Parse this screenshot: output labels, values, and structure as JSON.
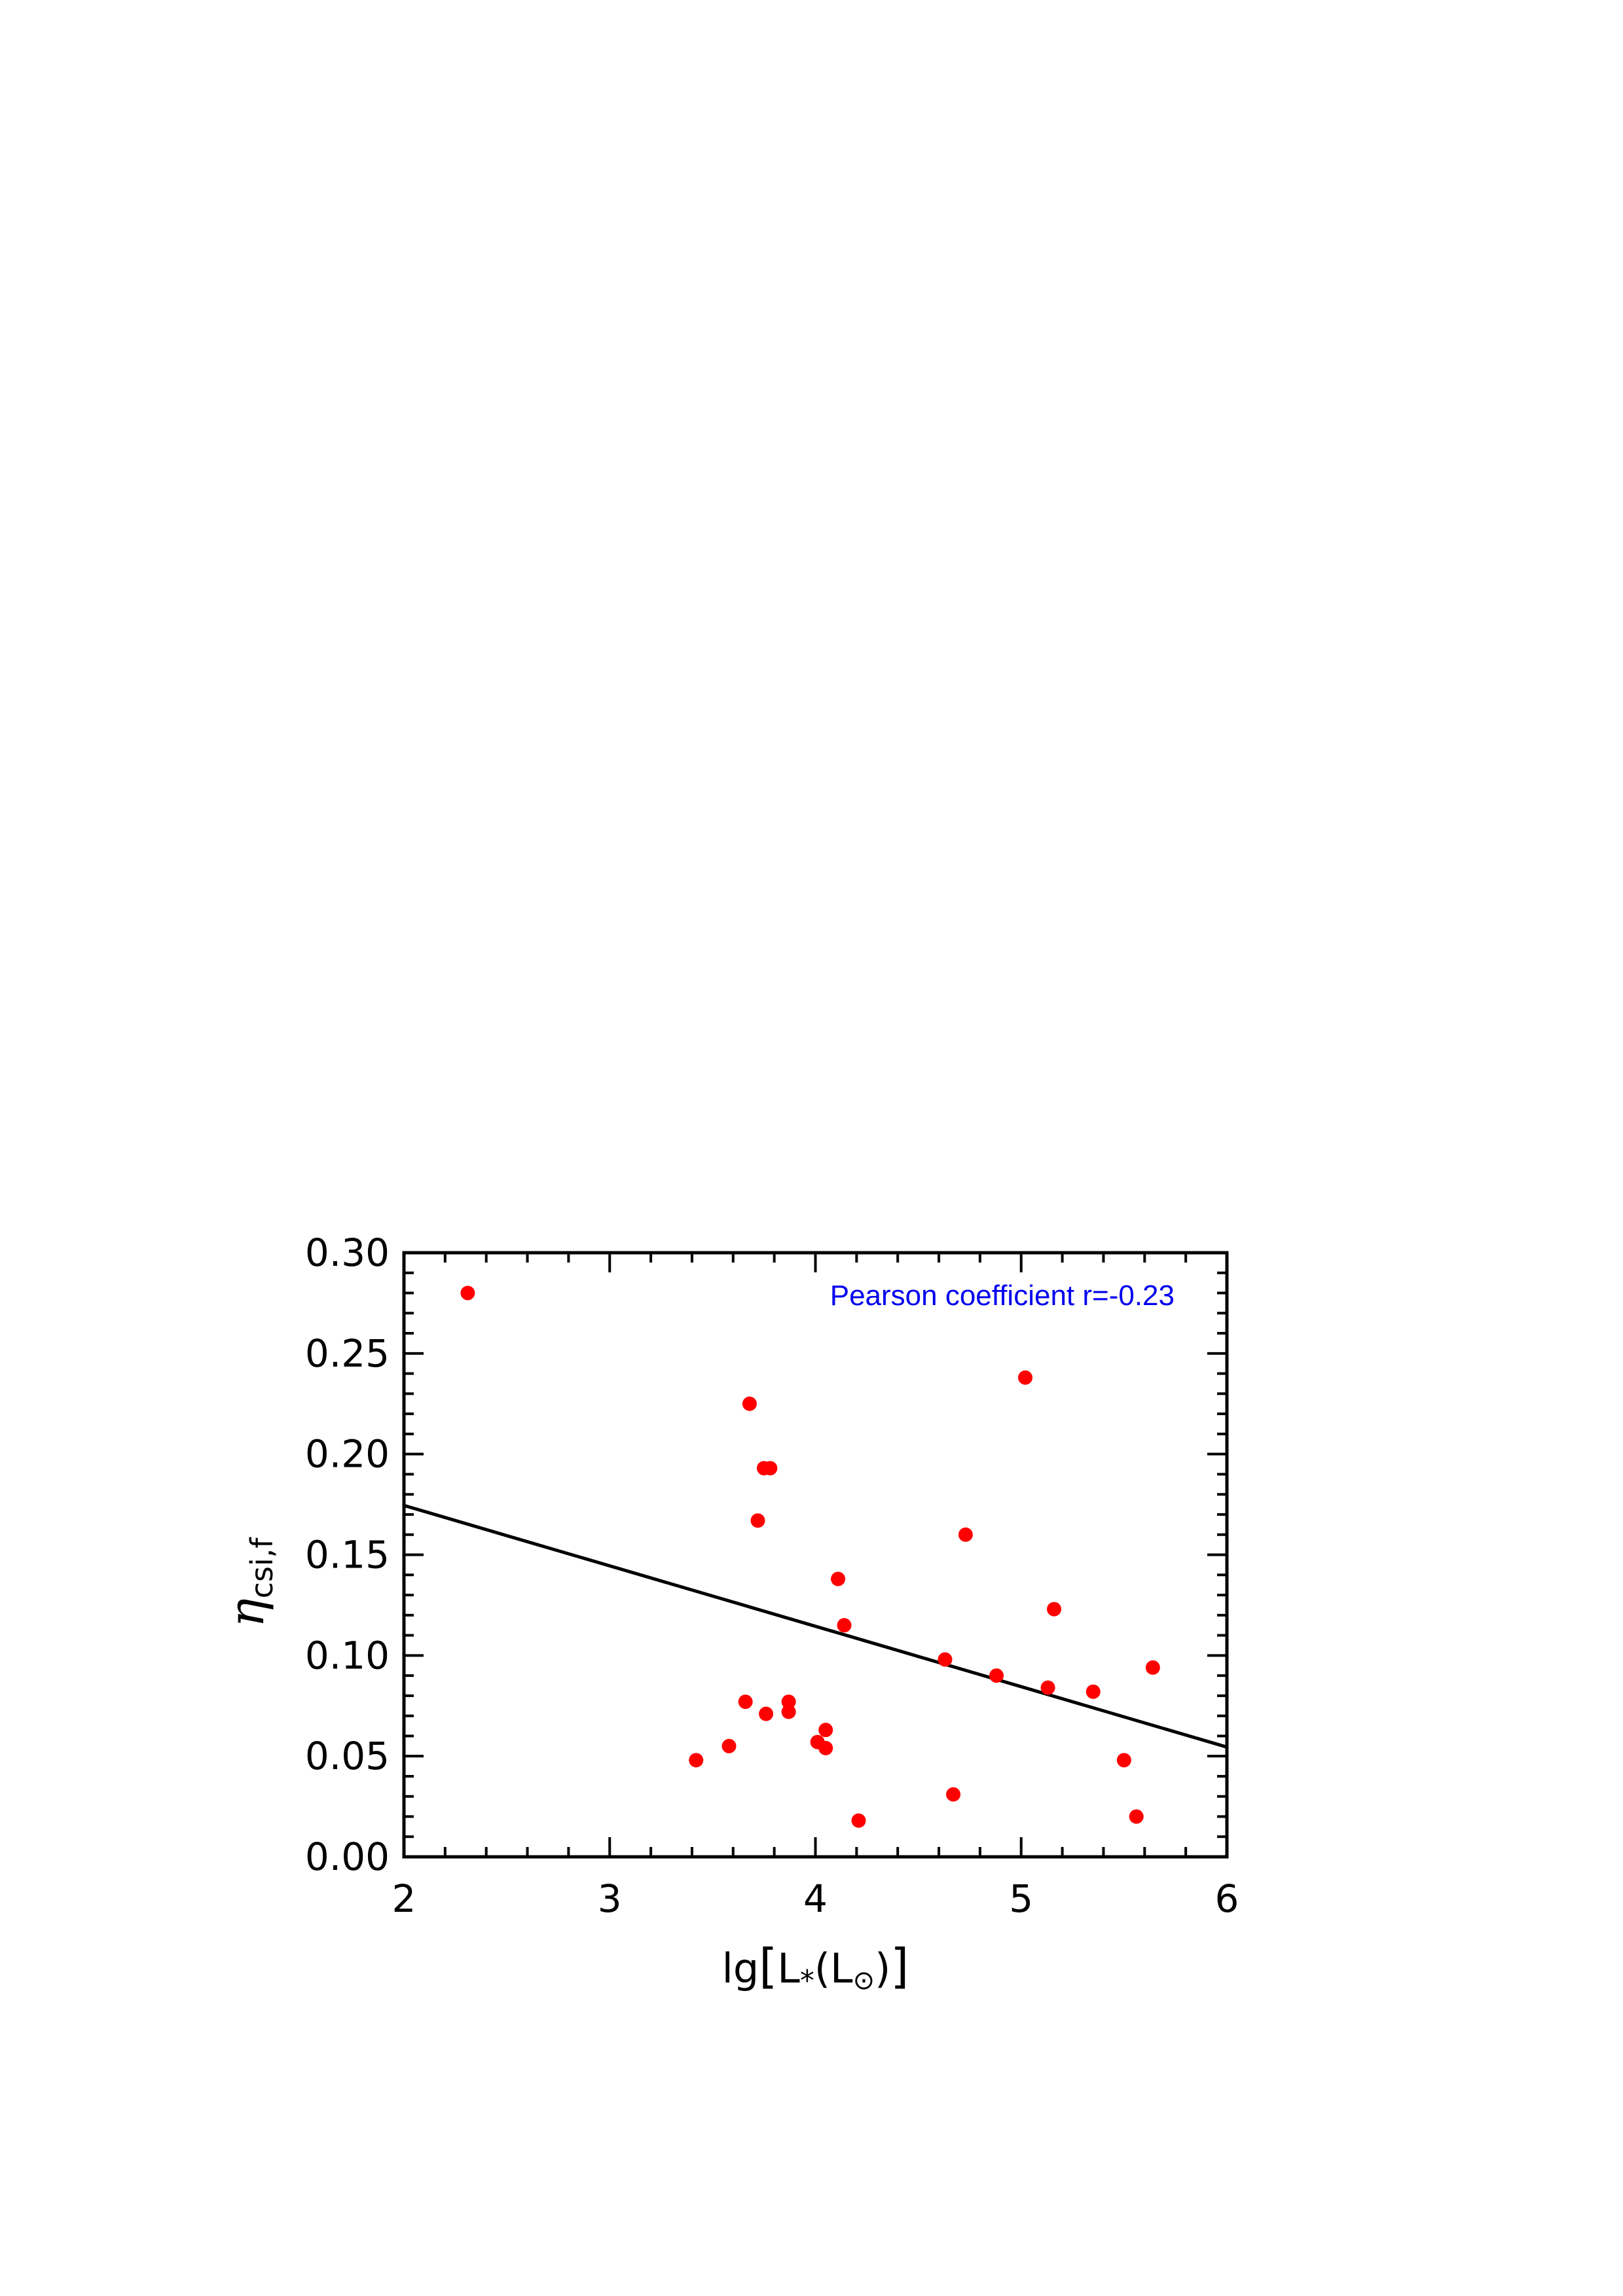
{
  "chart_data": {
    "type": "scatter",
    "xlabel": "lg[L*(L⊙)]",
    "xlabel_parts": {
      "prefix": "lg",
      "bracket_open": "[",
      "symbol": "L",
      "subscript": "*",
      "paren_open": "(",
      "unit": "L",
      "unit_subscript": "⊙",
      "paren_close": ")",
      "bracket_close": "]"
    },
    "ylabel": "ηcsi,f",
    "ylabel_parts": {
      "symbol": "η",
      "subscript": "csi,f"
    },
    "xlim": [
      2,
      6
    ],
    "ylim": [
      0,
      0.3
    ],
    "xticks": [
      2,
      3,
      4,
      5,
      6
    ],
    "xtick_labels": [
      "2",
      "3",
      "4",
      "5",
      "6"
    ],
    "yticks": [
      0,
      0.05,
      0.1,
      0.15,
      0.2,
      0.25,
      0.3
    ],
    "ytick_labels": [
      "0.00",
      "0.05",
      "0.10",
      "0.15",
      "0.20",
      "0.25",
      "0.30"
    ],
    "x_minor_step": 0.2,
    "y_minor_step": 0.01,
    "grid": false,
    "annotation": "Pearson coefficient r=-0.23",
    "annotation_color": "#0000ee",
    "point_color": "#ff0000",
    "line_color": "#000000",
    "points": [
      {
        "x": 2.31,
        "y": 0.28
      },
      {
        "x": 3.42,
        "y": 0.048
      },
      {
        "x": 3.58,
        "y": 0.055
      },
      {
        "x": 3.66,
        "y": 0.077
      },
      {
        "x": 3.68,
        "y": 0.225
      },
      {
        "x": 3.72,
        "y": 0.167
      },
      {
        "x": 3.75,
        "y": 0.193
      },
      {
        "x": 3.76,
        "y": 0.071
      },
      {
        "x": 3.78,
        "y": 0.193
      },
      {
        "x": 3.87,
        "y": 0.077
      },
      {
        "x": 3.87,
        "y": 0.072
      },
      {
        "x": 4.01,
        "y": 0.057
      },
      {
        "x": 4.05,
        "y": 0.063
      },
      {
        "x": 4.05,
        "y": 0.054
      },
      {
        "x": 4.11,
        "y": 0.138
      },
      {
        "x": 4.14,
        "y": 0.115
      },
      {
        "x": 4.21,
        "y": 0.018
      },
      {
        "x": 4.63,
        "y": 0.098
      },
      {
        "x": 4.67,
        "y": 0.031
      },
      {
        "x": 4.73,
        "y": 0.16
      },
      {
        "x": 4.88,
        "y": 0.09
      },
      {
        "x": 5.02,
        "y": 0.238
      },
      {
        "x": 5.13,
        "y": 0.084
      },
      {
        "x": 5.16,
        "y": 0.123
      },
      {
        "x": 5.35,
        "y": 0.082
      },
      {
        "x": 5.5,
        "y": 0.048
      },
      {
        "x": 5.56,
        "y": 0.02
      },
      {
        "x": 5.64,
        "y": 0.094
      }
    ],
    "fit_line": {
      "x": [
        2,
        6
      ],
      "y": [
        0.1745,
        0.0545
      ]
    }
  }
}
